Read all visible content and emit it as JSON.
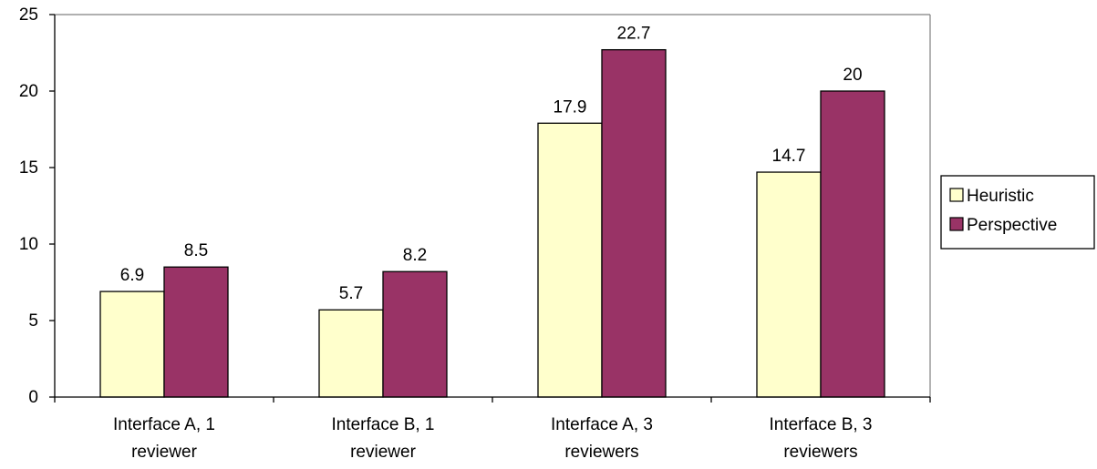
{
  "chart_data": {
    "type": "bar",
    "title": "",
    "xlabel": "",
    "ylabel": "",
    "ylim": [
      0,
      25
    ],
    "yticks": [
      0,
      5,
      10,
      15,
      20,
      25
    ],
    "grid": false,
    "legend_position": "right",
    "categories": [
      [
        "Interface A, 1",
        "reviewer"
      ],
      [
        "Interface B, 1",
        "reviewer"
      ],
      [
        "Interface A, 3",
        "reviewers"
      ],
      [
        "Interface B, 3",
        "reviewers"
      ]
    ],
    "series": [
      {
        "name": "Heuristic",
        "color": "#ffffcc",
        "values": [
          6.9,
          5.7,
          17.9,
          14.7
        ]
      },
      {
        "name": "Perspective",
        "color": "#993366",
        "values": [
          8.5,
          8.2,
          22.7,
          20
        ]
      }
    ]
  }
}
